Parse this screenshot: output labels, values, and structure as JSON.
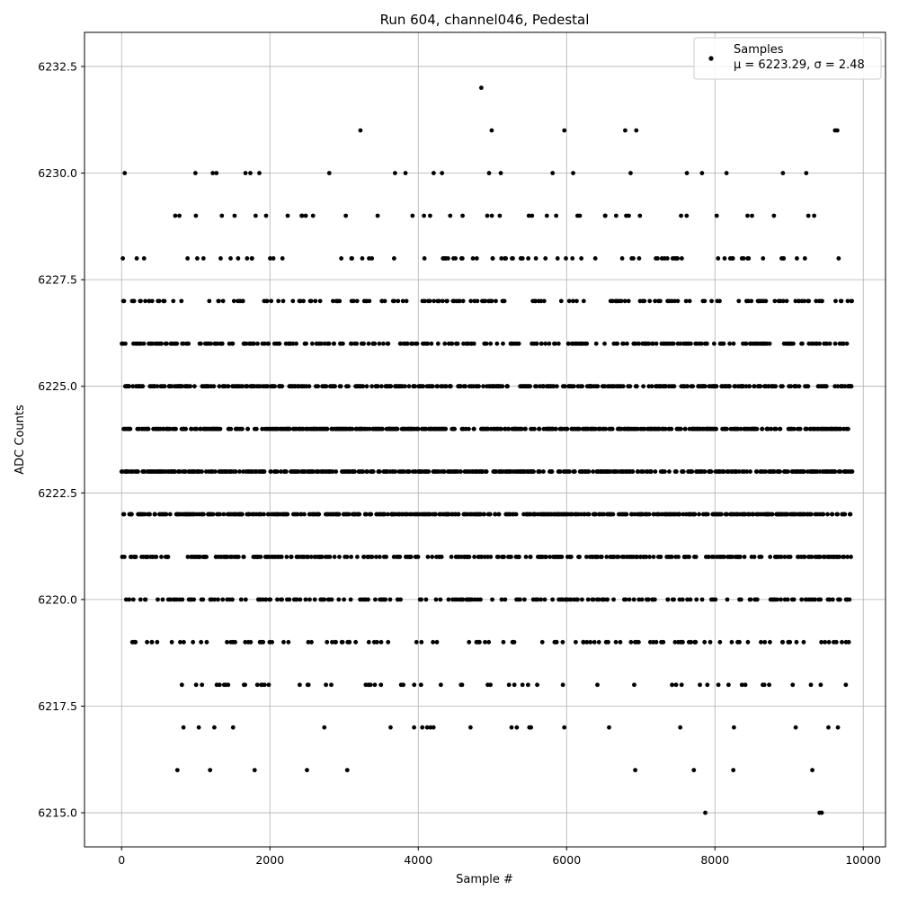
{
  "chart_data": {
    "type": "scatter",
    "title": "Run 604, channel046, Pedestal",
    "xlabel": "Sample #",
    "ylabel": "ADC Counts",
    "xlim": [
      -500,
      10300
    ],
    "ylim": [
      6214.2,
      6233.3
    ],
    "x_ticks": [
      0,
      2000,
      4000,
      6000,
      8000,
      10000
    ],
    "y_ticks": [
      6215.0,
      6217.5,
      6220.0,
      6222.5,
      6225.0,
      6227.5,
      6230.0,
      6232.5
    ],
    "x_tick_labels": [
      "0",
      "2000",
      "4000",
      "6000",
      "8000",
      "10000"
    ],
    "y_tick_labels": [
      "6215.0",
      "6217.5",
      "6220.0",
      "6222.5",
      "6225.0",
      "6227.5",
      "6230.0",
      "6232.5"
    ],
    "grid": true,
    "legend": {
      "position": "top-right",
      "entries": [
        "Samples",
        "μ = 6223.29, σ = 2.48"
      ]
    },
    "marker_color": "#000000",
    "series": [
      {
        "name": "Samples",
        "mean": 6223.29,
        "std": 2.48,
        "n_samples": 9850,
        "levels": [
          6215,
          6216,
          6217,
          6218,
          6219,
          6220,
          6221,
          6222,
          6223,
          6224,
          6225,
          6226,
          6227,
          6228,
          6229,
          6230,
          6231,
          6232
        ],
        "outliers": [
          {
            "x": 4850,
            "y": 6232
          },
          {
            "x": 3220,
            "y": 6231
          },
          {
            "x": 4990,
            "y": 6231
          },
          {
            "x": 5970,
            "y": 6231
          },
          {
            "x": 6790,
            "y": 6231
          },
          {
            "x": 6940,
            "y": 6231
          },
          {
            "x": 9620,
            "y": 6231
          },
          {
            "x": 9650,
            "y": 6231
          },
          {
            "x": 7870,
            "y": 6215
          },
          {
            "x": 9410,
            "y": 6215
          },
          {
            "x": 9440,
            "y": 6215
          }
        ]
      }
    ]
  }
}
